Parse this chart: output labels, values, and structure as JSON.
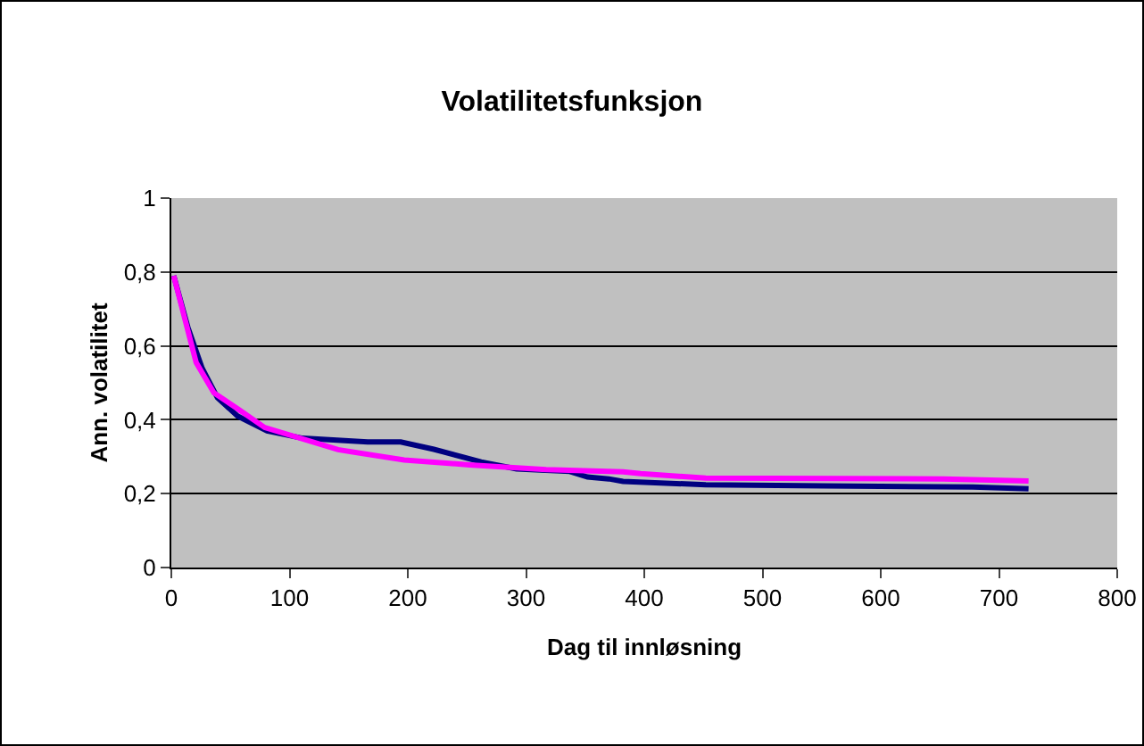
{
  "chart_data": {
    "type": "line",
    "title": "Volatilitetsfunksjon",
    "xlabel": "Dag til innløsning",
    "ylabel": "Ann. volatilitet",
    "xlim": [
      0,
      800
    ],
    "xticks": [
      0,
      100,
      200,
      300,
      400,
      500,
      600,
      700,
      800
    ],
    "ylim": [
      0,
      1
    ],
    "yticks": [
      0,
      {
        "value": 0.2,
        "label": "0,2"
      },
      {
        "value": 0.4,
        "label": "0,4"
      },
      {
        "value": 0.6,
        "label": "0,6"
      },
      {
        "value": 0.8,
        "label": "0,8"
      },
      1
    ],
    "grid": "y",
    "marker": "none",
    "line_style": "solid",
    "series": [
      {
        "color": "#000080",
        "x": [
          2,
          14,
          26,
          39,
          56,
          81,
          111,
          166,
          194,
          222,
          262,
          292,
          337,
          352,
          370,
          382,
          452,
          552,
          678,
          725
        ],
        "values": [
          0.79,
          0.65,
          0.54,
          0.46,
          0.41,
          0.37,
          0.35,
          0.34,
          0.34,
          0.32,
          0.286,
          0.267,
          0.26,
          0.245,
          0.24,
          0.233,
          0.224,
          0.221,
          0.218,
          0.213
        ]
      },
      {
        "color": "#ff00ff",
        "x": [
          2,
          21,
          36,
          56,
          79,
          141,
          197,
          252,
          317,
          382,
          397,
          452,
          653,
          725
        ],
        "values": [
          0.79,
          0.555,
          0.473,
          0.43,
          0.379,
          0.319,
          0.291,
          0.278,
          0.265,
          0.259,
          0.254,
          0.242,
          0.24,
          0.234
        ]
      }
    ]
  }
}
